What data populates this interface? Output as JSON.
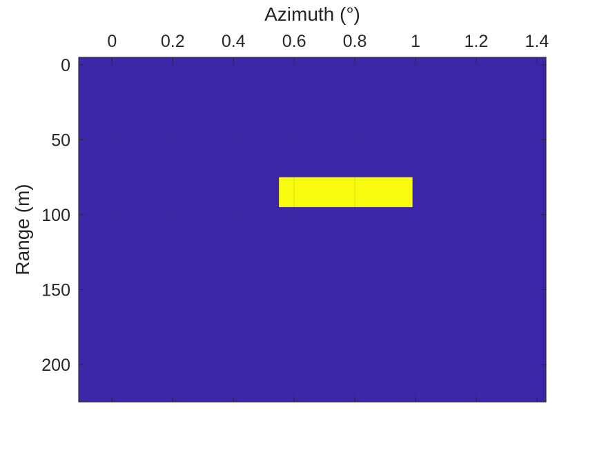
{
  "chart_data": {
    "type": "heatmap",
    "title": "",
    "xlabel": "Azimuth (°)",
    "ylabel": "Range (m)",
    "x_axis_location": "top",
    "y_axis_direction": "reversed",
    "xlim": [
      -0.11,
      1.43
    ],
    "ylim": [
      -5,
      225
    ],
    "x_ticks": [
      0,
      0.2,
      0.4,
      0.6,
      0.8,
      1,
      1.2,
      1.4
    ],
    "x_tick_labels": [
      "0",
      "0.2",
      "0.4",
      "0.6",
      "0.8",
      "1",
      "1.2",
      "1.4"
    ],
    "y_ticks": [
      0,
      50,
      100,
      150,
      200
    ],
    "y_tick_labels": [
      "0",
      "50",
      "100",
      "150",
      "200"
    ],
    "grid": true,
    "background_value": 0,
    "cells": [
      {
        "x0": 0.55,
        "x1": 0.99,
        "y0": 75,
        "y1": 95,
        "value": 1
      }
    ],
    "colors": {
      "low": "#3e26a8",
      "high": "#f9fb0e",
      "axis": "#262626"
    }
  }
}
